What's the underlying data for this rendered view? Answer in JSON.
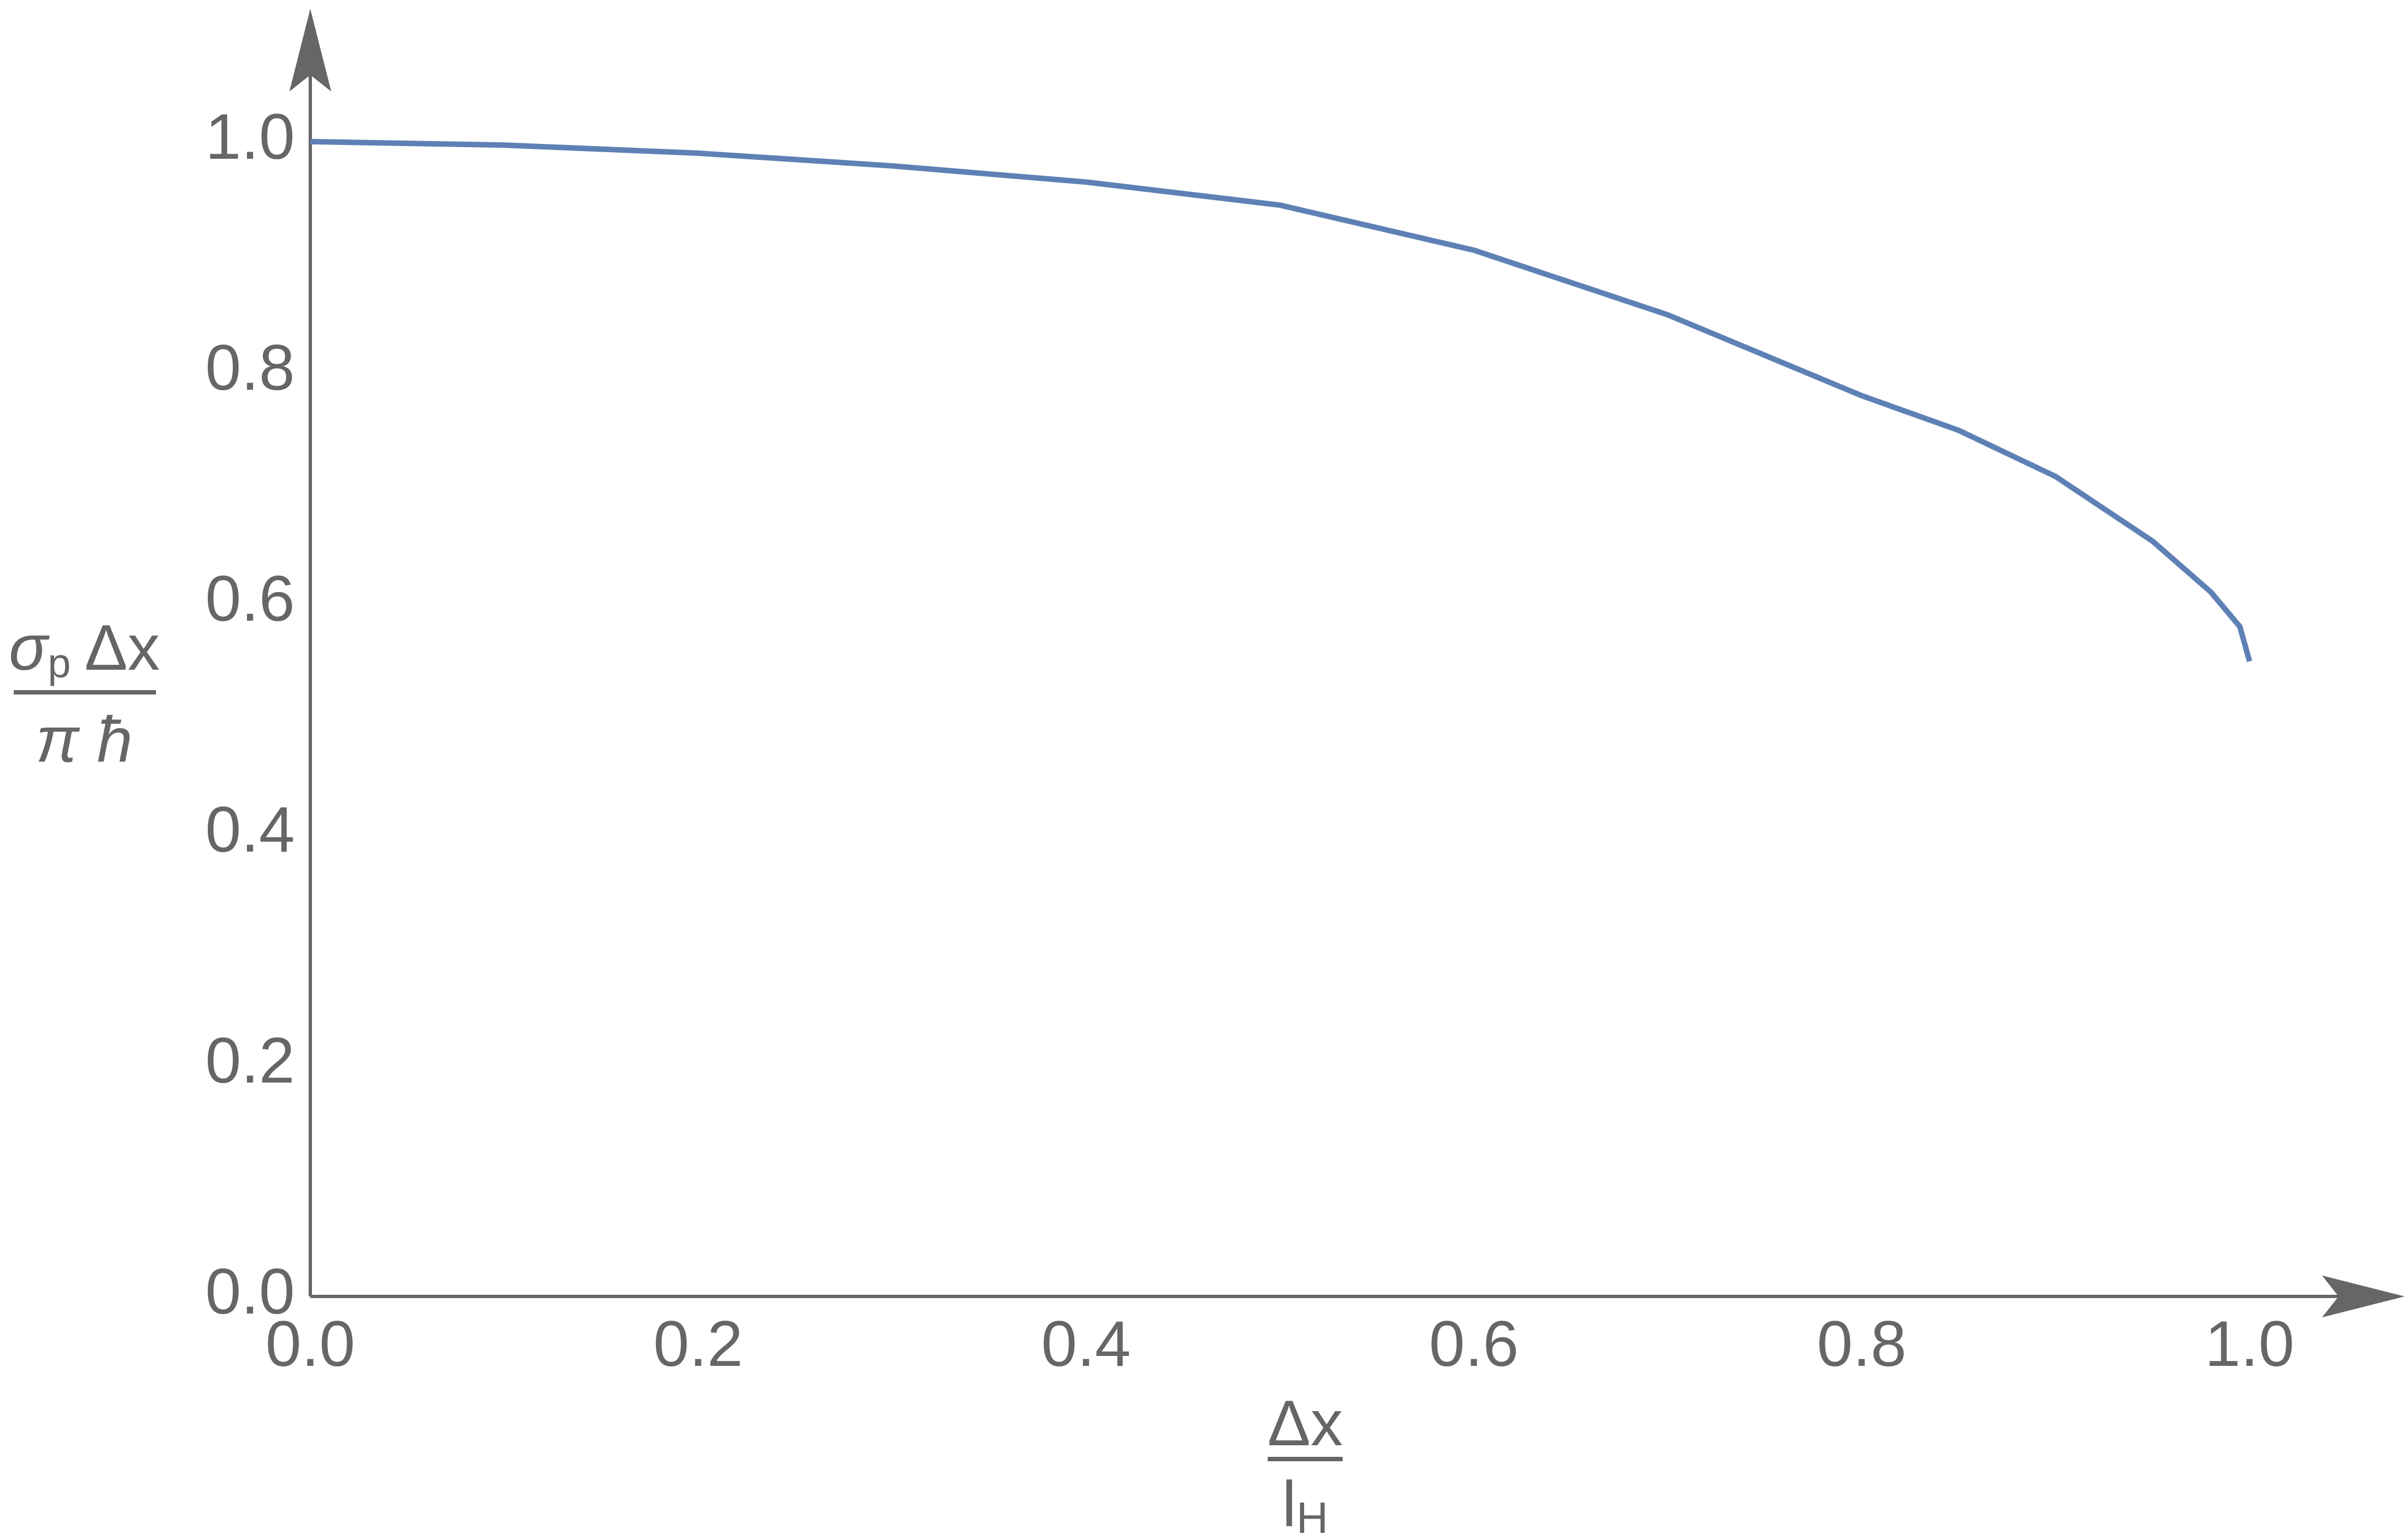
{
  "chart_data": {
    "type": "line",
    "ylabel_numerator": "σ",
    "ylabel_numerator_sub": "p",
    "ylabel_numerator_rest": "Δx",
    "ylabel_denominator": "π ħ",
    "xlabel_numerator": "Δx",
    "xlabel_denominator": "l",
    "xlabel_denominator_sub": "H",
    "x": [
      0,
      0.1,
      0.2,
      0.3,
      0.4,
      0.5,
      0.6,
      0.7,
      0.8,
      0.85,
      0.9,
      0.95,
      0.98,
      0.995,
      1.0
    ],
    "values": [
      1.0,
      0.997,
      0.99,
      0.979,
      0.965,
      0.945,
      0.906,
      0.85,
      0.78,
      0.75,
      0.71,
      0.654,
      0.61,
      0.58,
      0.55
    ],
    "color": "#5e81b5",
    "xlim": [
      0,
      1.08
    ],
    "ylim": [
      0,
      1.115
    ],
    "xticks": [
      {
        "value": 0,
        "label": "0.0"
      },
      0.2,
      0.4,
      0.6,
      0.8,
      {
        "value": 1,
        "label": "1.0"
      }
    ],
    "yticks": [
      {
        "value": 0,
        "label": "0.0"
      },
      0.2,
      0.4,
      0.6,
      0.8,
      {
        "value": 1,
        "label": "1.0"
      }
    ]
  }
}
